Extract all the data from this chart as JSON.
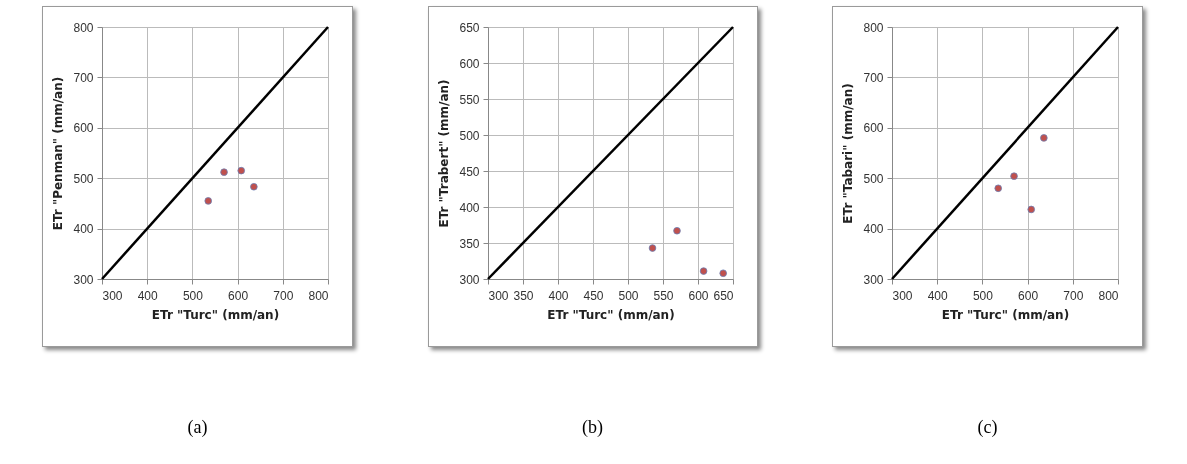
{
  "chart_data": [
    {
      "type": "scatter",
      "xlabel": "ETr \"Turc\" (mm/an)",
      "ylabel": "ETr \"Penman\" (mm/an)",
      "xlim": [
        300,
        800
      ],
      "ylim": [
        300,
        800
      ],
      "xticks": [
        300,
        400,
        500,
        600,
        700,
        800
      ],
      "yticks": [
        300,
        400,
        500,
        600,
        700,
        800
      ],
      "grid": true,
      "annotations": [
        "(a)"
      ],
      "series": [
        {
          "type": "line",
          "color": "#000000",
          "x": [
            300,
            800
          ],
          "values": [
            300,
            800
          ]
        },
        {
          "color": "#c0504d",
          "marker": "circle",
          "x": [
            535,
            570,
            608,
            636
          ],
          "values": [
            455,
            512,
            515,
            483
          ]
        }
      ]
    },
    {
      "type": "scatter",
      "xlabel": "ETr \"Turc\" (mm/an)",
      "ylabel": "ETr \"Trabert\" (mm/an)",
      "xlim": [
        300,
        650
      ],
      "ylim": [
        300,
        650
      ],
      "xticks": [
        300,
        350,
        400,
        450,
        500,
        550,
        600,
        650
      ],
      "yticks": [
        300,
        350,
        400,
        450,
        500,
        550,
        600,
        650
      ],
      "grid": true,
      "annotations": [
        "(b)"
      ],
      "series": [
        {
          "type": "line",
          "color": "#000000",
          "x": [
            300,
            650
          ],
          "values": [
            300,
            650
          ]
        },
        {
          "color": "#c0504d",
          "marker": "circle",
          "x": [
            535,
            570,
            608,
            636
          ],
          "values": [
            343,
            367,
            311,
            308
          ]
        }
      ]
    },
    {
      "type": "scatter",
      "xlabel": "ETr \"Turc\" (mm/an)",
      "ylabel": "ETr \"Tabari\" (mm/an)",
      "xlim": [
        300,
        800
      ],
      "ylim": [
        300,
        800
      ],
      "xticks": [
        300,
        400,
        500,
        600,
        700,
        800
      ],
      "yticks": [
        300,
        400,
        500,
        600,
        700,
        800
      ],
      "grid": true,
      "annotations": [
        "(c)"
      ],
      "series": [
        {
          "type": "line",
          "color": "#000000",
          "x": [
            300,
            800
          ],
          "values": [
            300,
            800
          ]
        },
        {
          "color": "#c0504d",
          "marker": "circle",
          "x": [
            535,
            570,
            608,
            636
          ],
          "values": [
            480,
            504,
            438,
            580
          ]
        }
      ]
    }
  ]
}
